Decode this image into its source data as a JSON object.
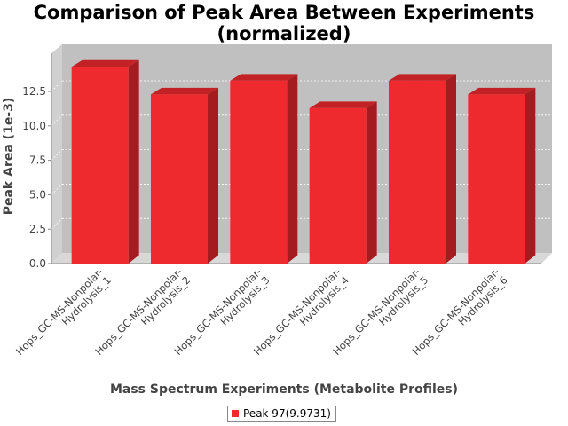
{
  "chart_data": {
    "type": "bar",
    "title": [
      "Comparison of Peak Area Between Experiments",
      "(normalized)"
    ],
    "xlabel": "Mass Spectrum Experiments (Metabolite Profiles)",
    "ylabel": "Peak Area (1e-3)",
    "ylim": [
      0,
      14.5
    ],
    "yticks": [
      0.0,
      2.5,
      5.0,
      7.5,
      10.0,
      12.5
    ],
    "ytick_labels": [
      "0.0",
      "2.5",
      "5.0",
      "7.5",
      "10.0",
      "12.5"
    ],
    "categories": [
      [
        "Hops_GC-MS-Nonpolar-",
        "Hydrolysis_1"
      ],
      [
        "Hops_GC-MS-Nonpolar-",
        "Hydrolysis_2"
      ],
      [
        "Hops_GC-MS-Nonpolar-",
        "Hydrolysis_3"
      ],
      [
        "Hops_GC-MS-Nonpolar-",
        "Hydrolysis_4"
      ],
      [
        "Hops_GC-MS-Nonpolar-",
        "Hydrolysis_5"
      ],
      [
        "Hops_GC-MS-Nonpolar-",
        "Hydrolysis_6"
      ]
    ],
    "series": [
      {
        "name": "Peak 97(9.9731)",
        "values": [
          13.9,
          11.9,
          12.9,
          10.9,
          12.9,
          11.9
        ],
        "color": "#ee2a2f"
      }
    ],
    "grid": true,
    "legend": "bottom-center",
    "plot_background": "#c0c0c0"
  }
}
